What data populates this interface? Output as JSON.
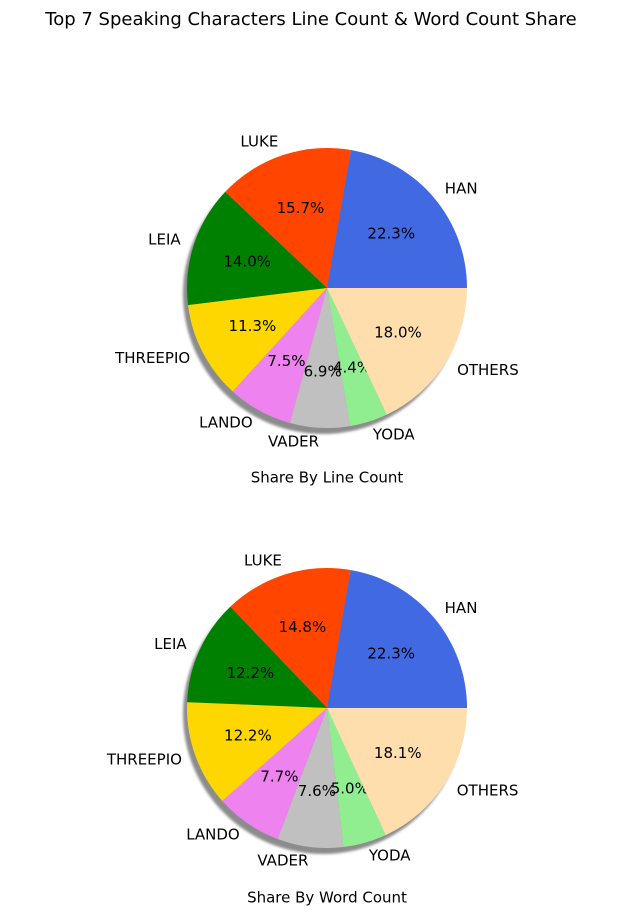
{
  "figure_title": "Top 7 Speaking Characters Line Count & Word Count Share",
  "chart_data": [
    {
      "type": "pie",
      "title": "",
      "xlabel": "Share By Line Count",
      "categories": [
        "HAN",
        "LUKE",
        "LEIA",
        "THREEPIO",
        "LANDO",
        "VADER",
        "YODA",
        "OTHERS"
      ],
      "values": [
        22.3,
        15.7,
        14.0,
        11.3,
        7.5,
        6.9,
        4.4,
        18.0
      ],
      "labels": [
        "22.3%",
        "15.7%",
        "14.0%",
        "11.3%",
        "7.5%",
        "6.9%",
        "4.4%",
        "18.0%"
      ],
      "colors": [
        "#4169e1",
        "#ff4500",
        "#008000",
        "#ffd700",
        "#ee82ee",
        "#c0c0c0",
        "#90ee90",
        "#ffdead"
      ],
      "shadow": true,
      "start_angle": 0
    },
    {
      "type": "pie",
      "title": "",
      "xlabel": "Share By Word Count",
      "categories": [
        "HAN",
        "LUKE",
        "LEIA",
        "THREEPIO",
        "LANDO",
        "VADER",
        "YODA",
        "OTHERS"
      ],
      "values": [
        22.3,
        14.8,
        12.2,
        12.2,
        7.7,
        7.6,
        5.0,
        18.1
      ],
      "labels": [
        "22.3%",
        "14.8%",
        "12.2%",
        "12.2%",
        "7.7%",
        "7.6%",
        "5.0%",
        "18.1%"
      ],
      "colors": [
        "#4169e1",
        "#ff4500",
        "#008000",
        "#ffd700",
        "#ee82ee",
        "#c0c0c0",
        "#90ee90",
        "#ffdead"
      ],
      "shadow": true,
      "start_angle": 0
    }
  ]
}
